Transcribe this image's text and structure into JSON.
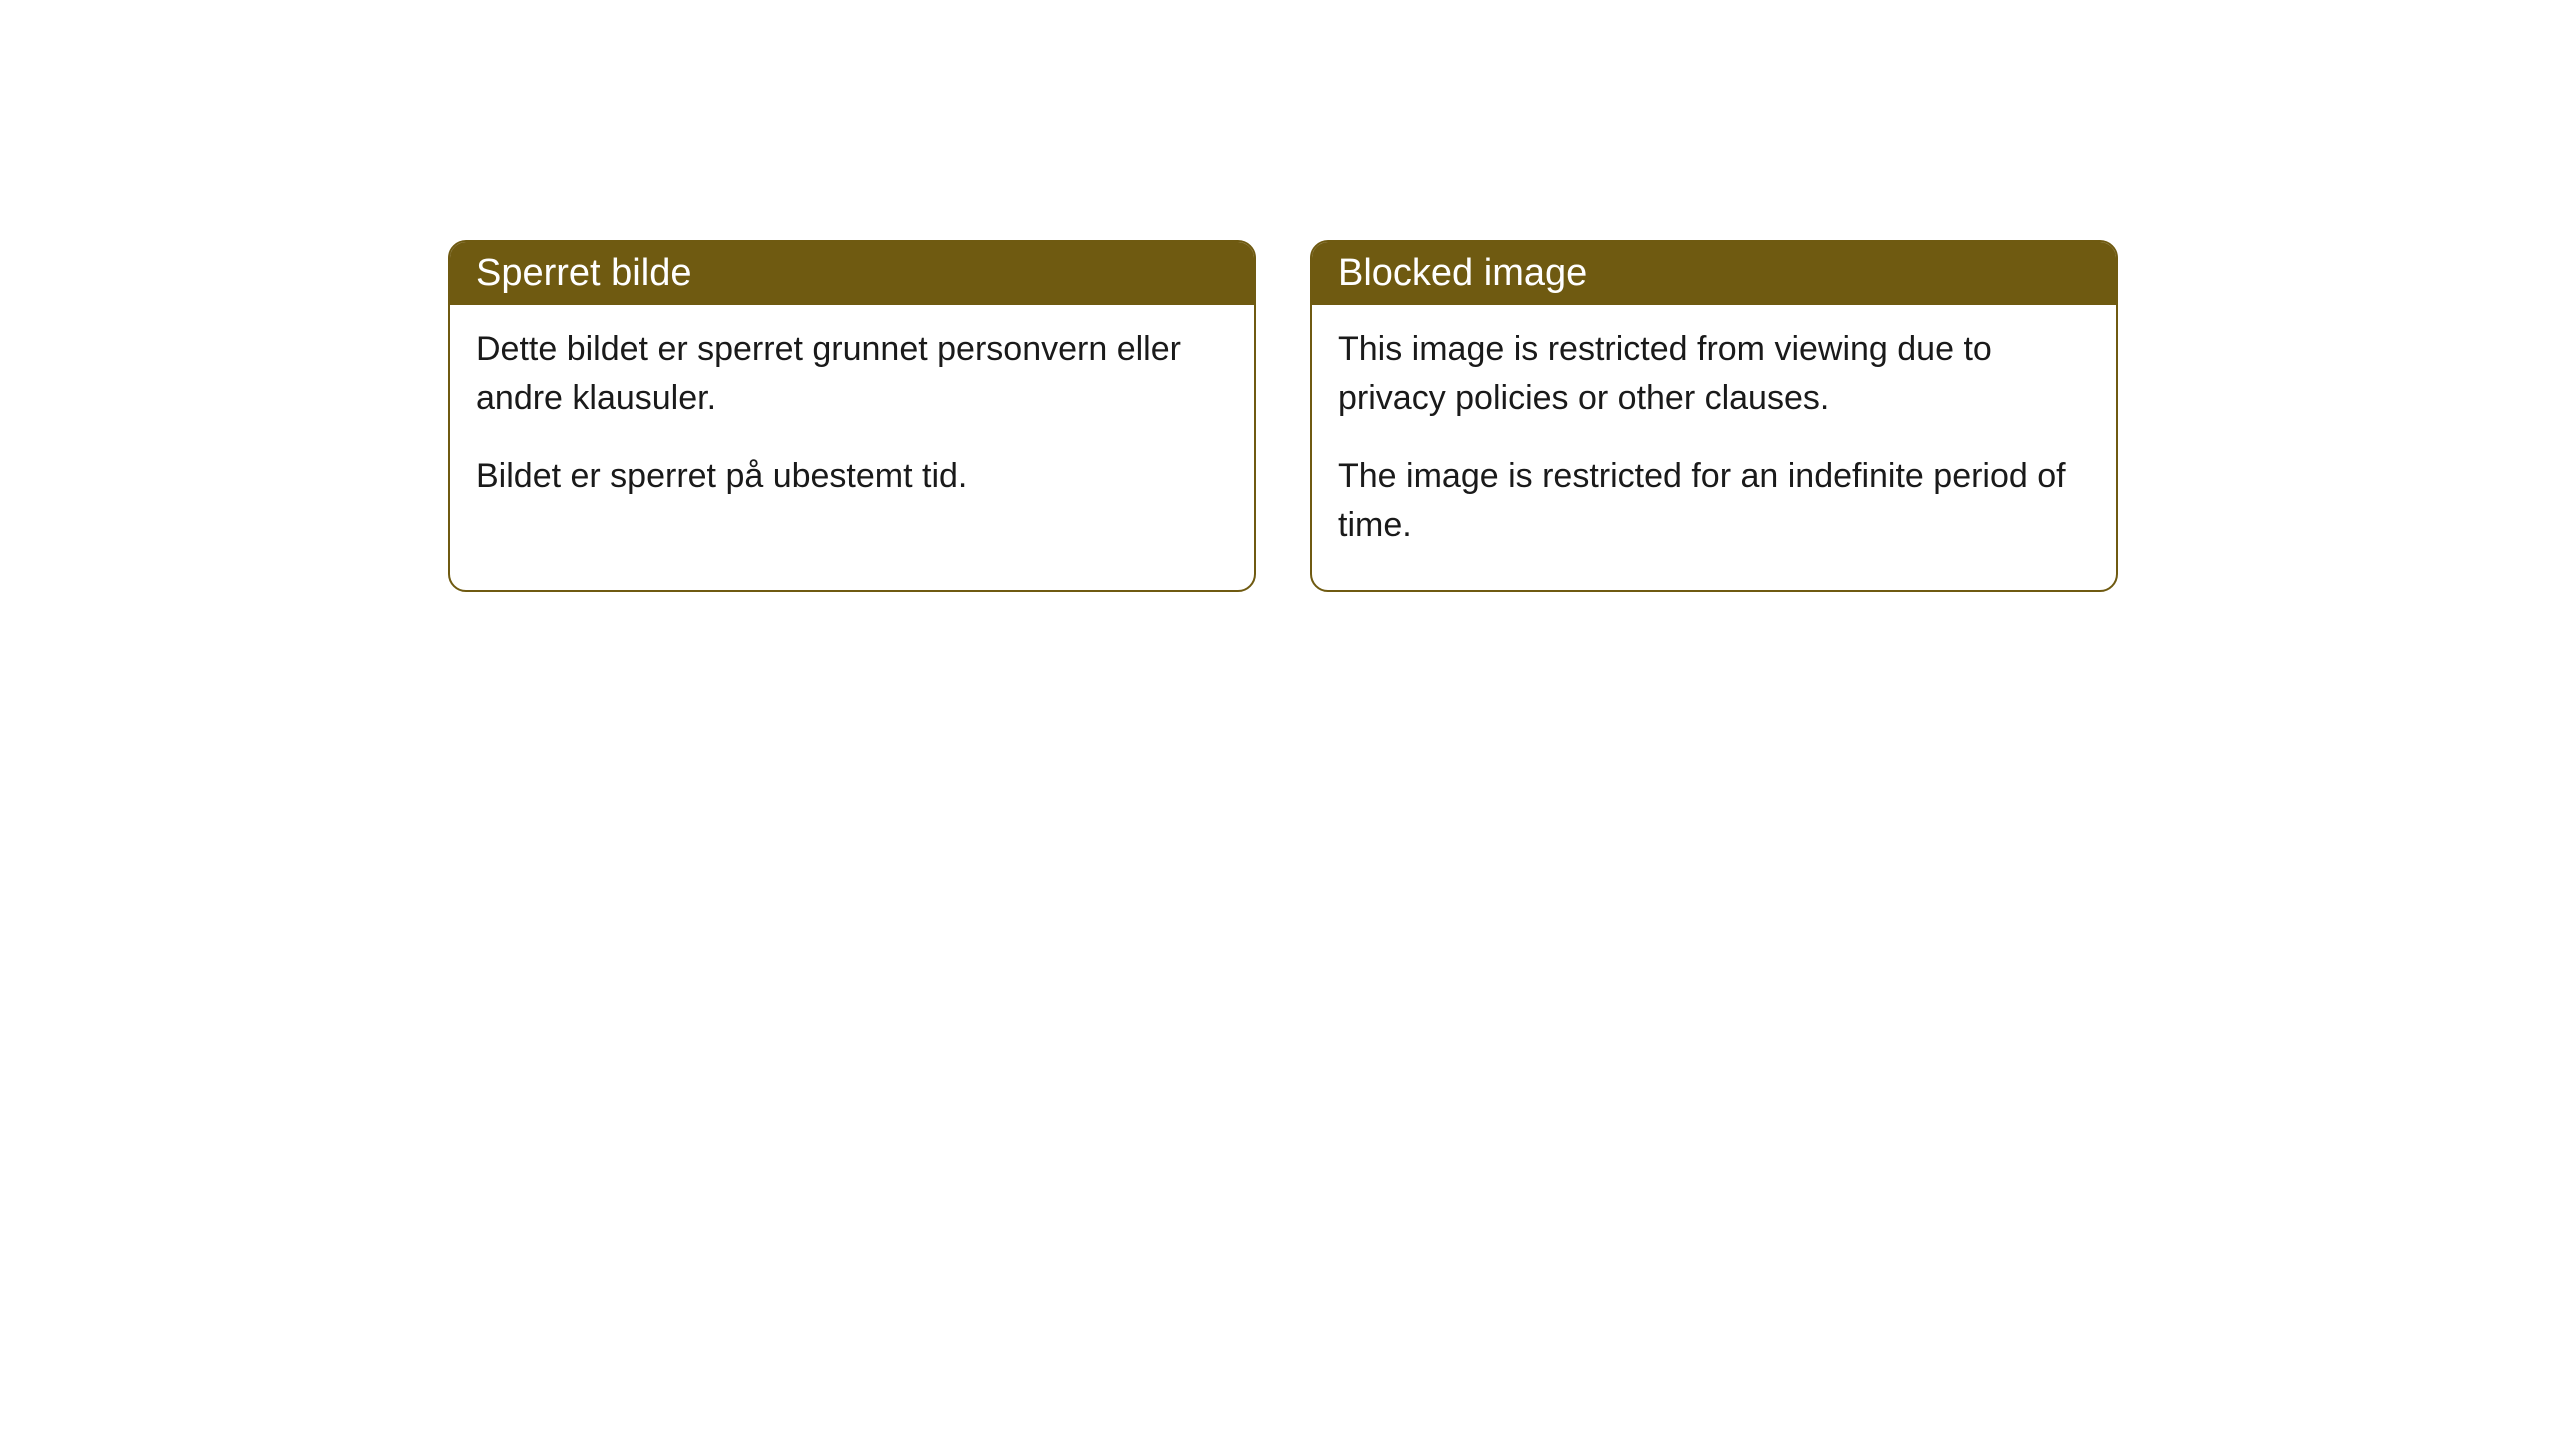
{
  "cards": [
    {
      "title": "Sperret bilde",
      "paragraph1": "Dette bildet er sperret grunnet personvern eller andre klausuler.",
      "paragraph2": "Bildet er sperret på ubestemt tid."
    },
    {
      "title": "Blocked image",
      "paragraph1": "This image is restricted from viewing due to privacy policies or other clauses.",
      "paragraph2": "The image is restricted for an indefinite period of time."
    }
  ],
  "style": {
    "header_bg_color": "#6f5a11",
    "header_text_color": "#ffffff",
    "border_color": "#6f5a11",
    "body_text_color": "#1a1a1a",
    "background_color": "#ffffff",
    "border_radius": 18,
    "header_fontsize": 38,
    "body_fontsize": 34
  }
}
